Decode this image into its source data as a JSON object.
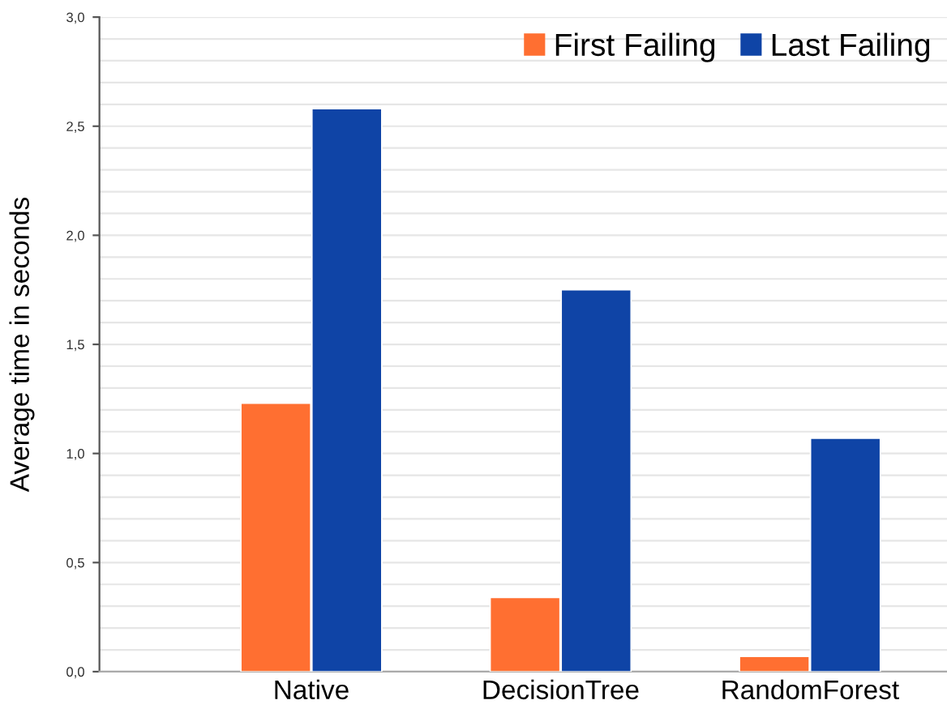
{
  "chart_data": {
    "type": "bar",
    "ylabel": "Average time in seconds",
    "categories": [
      "Native",
      "DecisionTree",
      "RandomForest"
    ],
    "series": [
      {
        "name": "First Failing",
        "color": "#ff6f31",
        "values": [
          1.23,
          0.34,
          0.07
        ]
      },
      {
        "name": "Last Failing",
        "color": "#0f44a6",
        "values": [
          2.58,
          1.75,
          1.07
        ]
      }
    ],
    "ylim": [
      0,
      3
    ],
    "yticks": [
      {
        "value": 0,
        "label": "0,0"
      },
      {
        "value": 0.1,
        "label": null
      },
      {
        "value": 0.2,
        "label": null
      },
      {
        "value": 0.3,
        "label": null
      },
      {
        "value": 0.4,
        "label": null
      },
      {
        "value": 0.5,
        "label": "0,5"
      },
      {
        "value": 0.6,
        "label": null
      },
      {
        "value": 0.7,
        "label": null
      },
      {
        "value": 0.8,
        "label": null
      },
      {
        "value": 0.9,
        "label": null
      },
      {
        "value": 1,
        "label": "1,0"
      },
      {
        "value": 1.1,
        "label": null
      },
      {
        "value": 1.2,
        "label": null
      },
      {
        "value": 1.3,
        "label": null
      },
      {
        "value": 1.4,
        "label": null
      },
      {
        "value": 1.5,
        "label": "1,5"
      },
      {
        "value": 1.6,
        "label": null
      },
      {
        "value": 1.7,
        "label": null
      },
      {
        "value": 1.8,
        "label": null
      },
      {
        "value": 1.9,
        "label": null
      },
      {
        "value": 2,
        "label": "2,0"
      },
      {
        "value": 2.1,
        "label": null
      },
      {
        "value": 2.2,
        "label": null
      },
      {
        "value": 2.3,
        "label": null
      },
      {
        "value": 2.4,
        "label": null
      },
      {
        "value": 2.5,
        "label": "2,5"
      },
      {
        "value": 2.6,
        "label": null
      },
      {
        "value": 2.7,
        "label": null
      },
      {
        "value": 2.8,
        "label": null
      },
      {
        "value": 2.9,
        "label": null
      },
      {
        "value": 3,
        "label": "3,0"
      }
    ],
    "grid": "y",
    "legend": "top right"
  }
}
